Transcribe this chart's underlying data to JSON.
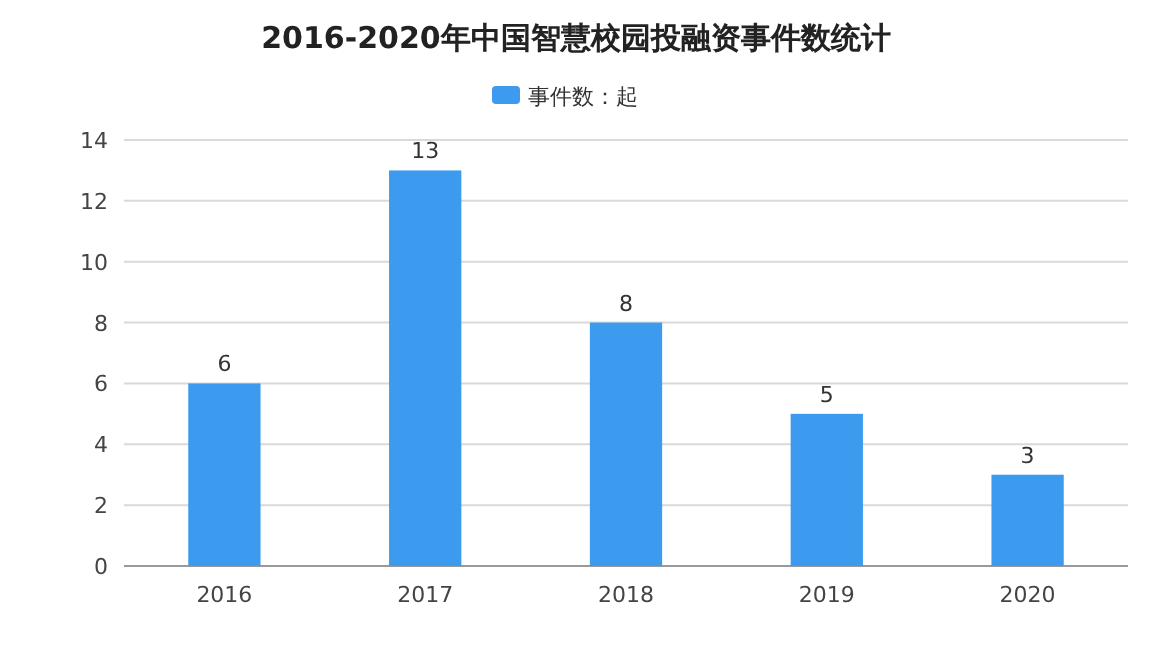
{
  "chart_data": {
    "type": "bar",
    "title": "2016-2020年中国智慧校园投融资事件数统计",
    "categories": [
      "2016",
      "2017",
      "2018",
      "2019",
      "2020"
    ],
    "series": [
      {
        "name": "事件数：起",
        "color": "#3d9bef",
        "values": [
          6,
          13,
          8,
          5,
          3
        ]
      }
    ],
    "ylim": [
      0,
      14
    ],
    "yticks": [
      0,
      2,
      4,
      6,
      8,
      10,
      12,
      14
    ],
    "grid": "y",
    "legend": "top",
    "data_labels": true
  }
}
